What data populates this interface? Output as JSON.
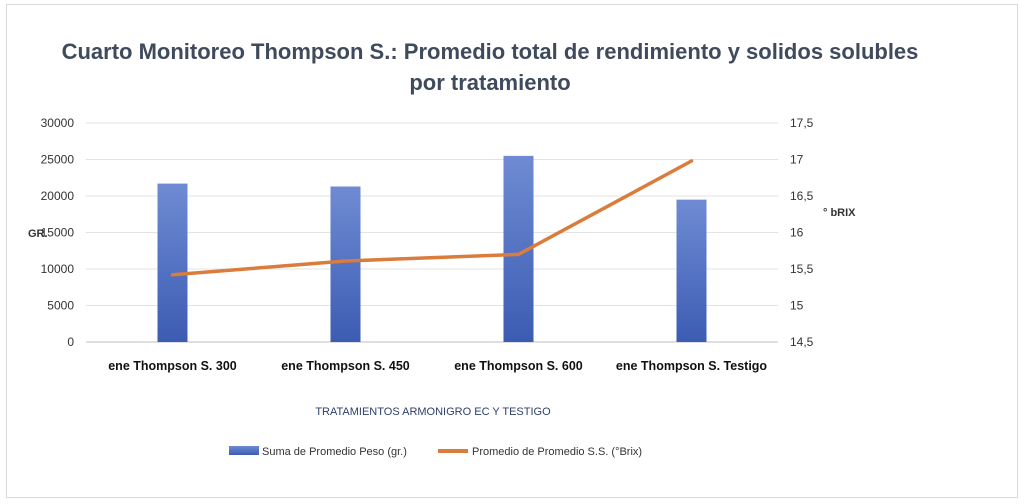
{
  "chart_data": {
    "type": "bar",
    "title": "Cuarto Monitoreo Thompson S.: Promedio total de rendimiento y solidos solubles por tratamiento",
    "xlabel": "TRATAMIENTOS ARMONIGRO EC Y TESTIGO",
    "ylabel": "GR.",
    "y2label": "° bRIX",
    "categories": [
      "ene Thompson S. 300",
      "ene Thompson S. 450",
      "ene Thompson S. 600",
      "ene Thompson S. Testigo"
    ],
    "ylim": [
      0,
      30000
    ],
    "y_ticks": [
      "0",
      "5000",
      "10000",
      "15000",
      "20000",
      "25000",
      "30000"
    ],
    "y2lim": [
      14.5,
      17.5
    ],
    "y2_ticks": [
      "14,5",
      "15",
      "15,5",
      "16",
      "16,5",
      "17",
      "17,5"
    ],
    "grid": true,
    "legend_position": "bottom",
    "series": [
      {
        "name": "Suma de Promedio Peso (gr.)",
        "type": "bar",
        "axis": "left",
        "color": "#4a6cc0",
        "values": [
          21700,
          21300,
          25500,
          19500
        ]
      },
      {
        "name": "Promedio de Promedio S.S. (°Brix)",
        "type": "line",
        "axis": "right",
        "color": "#d97c3c",
        "values": [
          15.42,
          15.61,
          15.7,
          16.98
        ]
      }
    ]
  }
}
